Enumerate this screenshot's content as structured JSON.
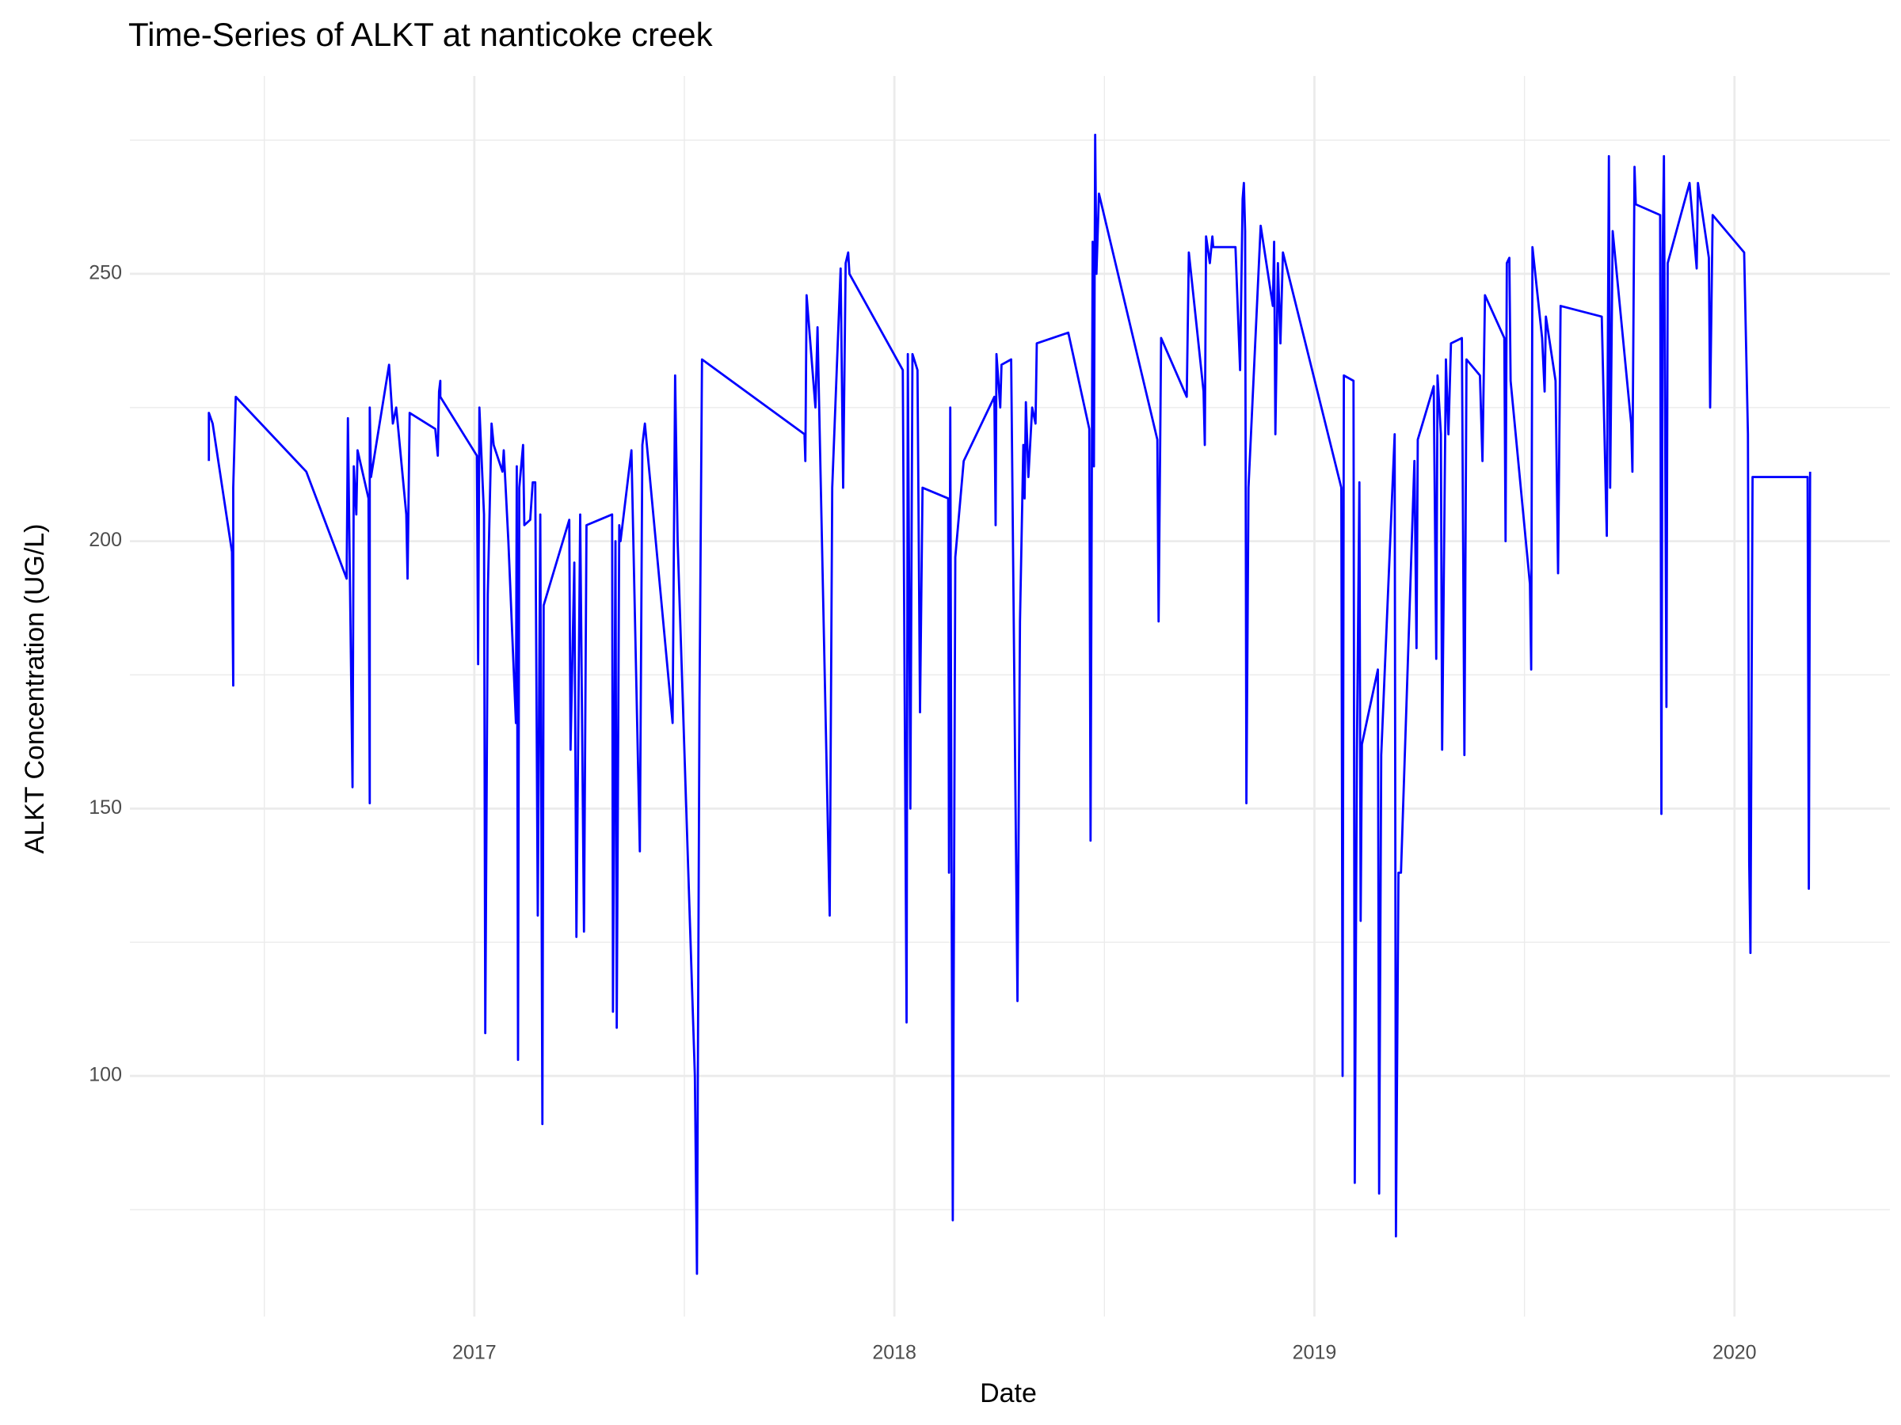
{
  "chart_data": {
    "type": "line",
    "title": "Time-Series of ALKT at nanticoke creek",
    "x_label": "Date",
    "y_label": "ALKT Concentration (UG/L)",
    "color": "#0000ff",
    "grid": true,
    "xlim": [
      2016.18,
      2020.37
    ],
    "xticks": [
      2017,
      2018,
      2019,
      2020
    ],
    "xminor": [
      2016.5,
      2017.5,
      2018.5,
      2019.5
    ],
    "ylim": [
      55,
      287
    ],
    "yticks": [
      100,
      150,
      200,
      250
    ],
    "yminor": [
      75,
      125,
      175,
      225,
      275
    ],
    "x": [
      2016.368,
      2016.368,
      2016.377,
      2016.423,
      2016.426,
      2016.426,
      2016.432,
      2016.6,
      2016.696,
      2016.699,
      2016.71,
      2016.713,
      2016.719,
      2016.722,
      2016.748,
      2016.751,
      2016.751,
      2016.754,
      2016.797,
      2016.806,
      2016.814,
      2016.838,
      2016.841,
      2016.846,
      2016.907,
      2016.913,
      2016.916,
      2016.919,
      2016.919,
      2017.006,
      2017.009,
      2017.012,
      2017.023,
      2017.026,
      2017.032,
      2017.041,
      2017.046,
      2017.067,
      2017.07,
      2017.081,
      2017.099,
      2017.101,
      2017.104,
      2017.107,
      2017.116,
      2017.119,
      2017.133,
      2017.139,
      2017.145,
      2017.151,
      2017.157,
      2017.162,
      2017.165,
      2017.226,
      2017.229,
      2017.238,
      2017.243,
      2017.252,
      2017.261,
      2017.267,
      2017.328,
      2017.33,
      2017.336,
      2017.339,
      2017.345,
      2017.348,
      2017.374,
      2017.394,
      2017.4,
      2017.406,
      2017.472,
      2017.478,
      2017.484,
      2017.525,
      2017.53,
      2017.536,
      2017.542,
      2017.786,
      2017.788,
      2017.791,
      2017.812,
      2017.817,
      2017.846,
      2017.852,
      2017.872,
      2017.878,
      2017.884,
      2017.89,
      2017.893,
      2018.02,
      2018.029,
      2018.032,
      2018.038,
      2018.043,
      2018.055,
      2018.061,
      2018.067,
      2018.128,
      2018.13,
      2018.133,
      2018.136,
      2018.139,
      2018.145,
      2018.165,
      2018.238,
      2018.241,
      2018.243,
      2018.252,
      2018.255,
      2018.278,
      2018.293,
      2018.299,
      2018.307,
      2018.31,
      2018.313,
      2018.319,
      2018.328,
      2018.336,
      2018.339,
      2018.414,
      2018.464,
      2018.467,
      2018.472,
      2018.475,
      2018.478,
      2018.481,
      2018.487,
      2018.626,
      2018.629,
      2018.635,
      2018.696,
      2018.701,
      2018.736,
      2018.739,
      2018.742,
      2018.751,
      2018.757,
      2018.759,
      2018.812,
      2018.823,
      2018.829,
      2018.832,
      2018.835,
      2018.838,
      2018.843,
      2018.872,
      2018.901,
      2018.904,
      2018.907,
      2018.913,
      2018.919,
      2018.925,
      2019.064,
      2019.067,
      2019.07,
      2019.093,
      2019.096,
      2019.101,
      2019.107,
      2019.11,
      2019.113,
      2019.151,
      2019.154,
      2019.159,
      2019.191,
      2019.194,
      2019.2,
      2019.206,
      2019.238,
      2019.243,
      2019.246,
      2019.284,
      2019.29,
      2019.293,
      2019.301,
      2019.304,
      2019.313,
      2019.319,
      2019.325,
      2019.351,
      2019.357,
      2019.362,
      2019.394,
      2019.4,
      2019.406,
      2019.452,
      2019.455,
      2019.458,
      2019.464,
      2019.467,
      2019.513,
      2019.516,
      2019.519,
      2019.542,
      2019.548,
      2019.551,
      2019.574,
      2019.58,
      2019.586,
      2019.684,
      2019.696,
      2019.701,
      2019.704,
      2019.71,
      2019.754,
      2019.757,
      2019.762,
      2019.765,
      2019.823,
      2019.826,
      2019.829,
      2019.832,
      2019.838,
      2019.841,
      2019.893,
      2019.91,
      2019.913,
      2019.939,
      2019.942,
      2019.948,
      2020.023,
      2020.032,
      2020.035,
      2020.038,
      2020.043,
      2020.174,
      2020.177,
      2020.18
    ],
    "values": [
      215,
      224,
      222,
      198,
      173,
      210,
      227,
      213,
      193,
      223,
      154,
      214,
      205,
      217,
      208,
      151,
      225,
      212,
      233,
      222,
      225,
      205,
      193,
      224,
      221,
      216,
      228,
      230,
      227,
      216,
      177,
      225,
      205,
      108,
      190,
      222,
      218,
      213,
      217,
      200,
      166,
      214,
      103,
      210,
      218,
      203,
      204,
      211,
      211,
      130,
      205,
      91,
      188,
      204,
      161,
      196,
      126,
      205,
      127,
      203,
      205,
      112,
      200,
      109,
      203,
      200,
      217,
      142,
      218,
      222,
      166,
      231,
      200,
      100,
      63,
      170,
      234,
      220,
      215,
      246,
      225,
      240,
      130,
      210,
      251,
      210,
      252,
      254,
      250,
      232,
      110,
      235,
      150,
      235,
      232,
      168,
      210,
      208,
      138,
      225,
      140,
      73,
      197,
      215,
      227,
      203,
      235,
      225,
      233,
      234,
      114,
      185,
      218,
      208,
      226,
      212,
      225,
      222,
      237,
      239,
      221,
      144,
      256,
      214,
      276,
      250,
      265,
      219,
      185,
      238,
      227,
      254,
      228,
      218,
      257,
      252,
      257,
      255,
      255,
      232,
      264,
      267,
      258,
      151,
      210,
      259,
      244,
      256,
      220,
      252,
      237,
      254,
      210,
      100,
      231,
      230,
      80,
      160,
      211,
      129,
      162,
      176,
      78,
      160,
      220,
      70,
      138,
      138,
      215,
      180,
      219,
      229,
      178,
      231,
      220,
      161,
      234,
      220,
      237,
      238,
      160,
      234,
      231,
      215,
      246,
      238,
      200,
      252,
      253,
      230,
      192,
      176,
      255,
      238,
      228,
      242,
      230,
      194,
      244,
      242,
      201,
      272,
      210,
      258,
      222,
      213,
      270,
      263,
      261,
      149,
      253,
      272,
      169,
      252,
      267,
      251,
      267,
      253,
      225,
      261,
      254,
      220,
      140,
      123,
      212,
      212,
      135,
      213
    ]
  }
}
